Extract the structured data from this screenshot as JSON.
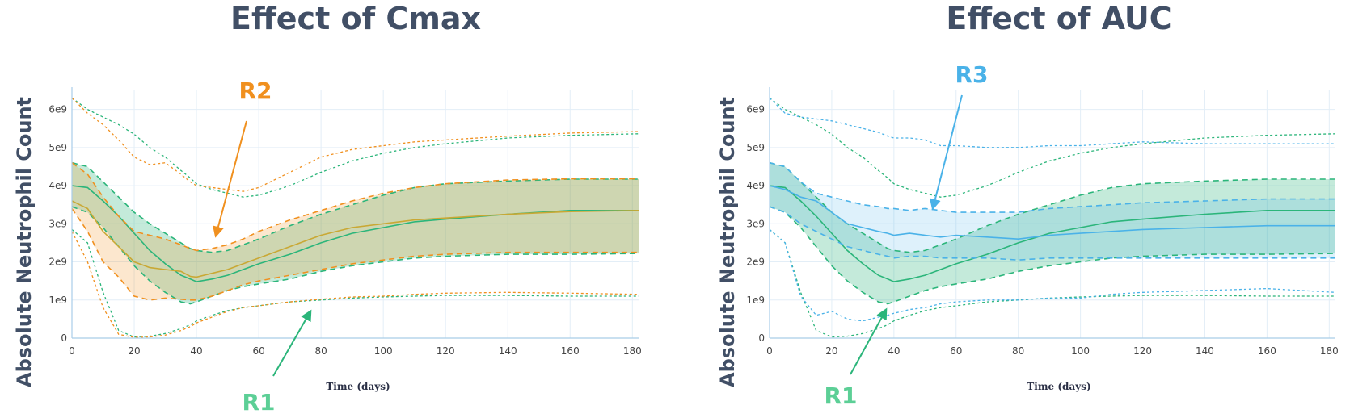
{
  "colors": {
    "green": "#2bb57a",
    "orange": "#f0901f",
    "blue": "#4ab2e8",
    "olive": "#c9a834",
    "title": "#414f66",
    "grid": "#e3eef7",
    "axis": "#a9cde8"
  },
  "chart_data": [
    {
      "type": "line",
      "title": "Effect of Cmax",
      "xlabel": "Time (days)",
      "ylabel": "Absolute Neutrophil Count",
      "xlim": [
        0,
        182
      ],
      "ylim": [
        0,
        6500000000.0
      ],
      "xticks": [
        "0",
        "20",
        "40",
        "60",
        "80",
        "100",
        "120",
        "140",
        "160",
        "180"
      ],
      "yticks": [
        "0",
        "1e9",
        "2e9",
        "3e9",
        "4e9",
        "5e9",
        "6e9"
      ],
      "grid": true,
      "legend": "none",
      "series": [
        {
          "color": "green",
          "x": [
            0,
            5,
            10,
            15,
            20,
            25,
            30,
            35,
            38,
            40,
            45,
            50,
            55,
            60,
            70,
            80,
            90,
            100,
            110,
            120,
            140,
            160,
            182
          ],
          "median": [
            4000000000.0,
            3950000000.0,
            3600000000.0,
            3200000000.0,
            2750000000.0,
            2300000000.0,
            1950000000.0,
            1650000000.0,
            1550000000.0,
            1480000000.0,
            1550000000.0,
            1650000000.0,
            1800000000.0,
            1950000000.0,
            2200000000.0,
            2500000000.0,
            2750000000.0,
            2900000000.0,
            3050000000.0,
            3120000000.0,
            3250000000.0,
            3350000000.0,
            3350000000.0
          ],
          "upper": [
            4600000000.0,
            4500000000.0,
            4100000000.0,
            3700000000.0,
            3300000000.0,
            3000000000.0,
            2750000000.0,
            2500000000.0,
            2350000000.0,
            2300000000.0,
            2250000000.0,
            2300000000.0,
            2450000000.0,
            2600000000.0,
            2950000000.0,
            3250000000.0,
            3500000000.0,
            3750000000.0,
            3950000000.0,
            4050000000.0,
            4120000000.0,
            4170000000.0,
            4170000000.0
          ],
          "lower": [
            3450000000.0,
            3300000000.0,
            2900000000.0,
            2400000000.0,
            1900000000.0,
            1500000000.0,
            1200000000.0,
            950000000.0,
            900000000.0,
            950000000.0,
            1100000000.0,
            1250000000.0,
            1350000000.0,
            1420000000.0,
            1550000000.0,
            1750000000.0,
            1900000000.0,
            2000000000.0,
            2100000000.0,
            2150000000.0,
            2200000000.0,
            2200000000.0,
            2220000000.0
          ],
          "outer_upper": [
            6300000000.0,
            6000000000.0,
            5800000000.0,
            5600000000.0,
            5350000000.0,
            5000000000.0,
            4750000000.0,
            4400000000.0,
            4200000000.0,
            4050000000.0,
            3900000000.0,
            3800000000.0,
            3700000000.0,
            3750000000.0,
            4000000000.0,
            4350000000.0,
            4650000000.0,
            4850000000.0,
            5000000000.0,
            5100000000.0,
            5250000000.0,
            5320000000.0,
            5360000000.0
          ],
          "outer_lower": [
            2850000000.0,
            2500000000.0,
            1200000000.0,
            200000000.0,
            30000000.0,
            50000000.0,
            120000000.0,
            250000000.0,
            350000000.0,
            450000000.0,
            600000000.0,
            720000000.0,
            800000000.0,
            850000000.0,
            950000000.0,
            1000000000.0,
            1050000000.0,
            1080000000.0,
            1100000000.0,
            1120000000.0,
            1120000000.0,
            1100000000.0,
            1100000000.0
          ]
        },
        {
          "color": "orange",
          "x": [
            0,
            5,
            10,
            15,
            20,
            25,
            30,
            35,
            38,
            40,
            45,
            50,
            55,
            60,
            70,
            80,
            90,
            100,
            110,
            120,
            140,
            160,
            182
          ],
          "median": [
            3600000000.0,
            3400000000.0,
            2800000000.0,
            2400000000.0,
            2000000000.0,
            1850000000.0,
            1800000000.0,
            1750000000.0,
            1620000000.0,
            1600000000.0,
            1700000000.0,
            1800000000.0,
            1950000000.0,
            2100000000.0,
            2400000000.0,
            2700000000.0,
            2900000000.0,
            3000000000.0,
            3100000000.0,
            3150000000.0,
            3250000000.0,
            3320000000.0,
            3350000000.0
          ],
          "upper": [
            4600000000.0,
            4300000000.0,
            3700000000.0,
            3200000000.0,
            2800000000.0,
            2700000000.0,
            2600000000.0,
            2450000000.0,
            2350000000.0,
            2300000000.0,
            2350000000.0,
            2450000000.0,
            2600000000.0,
            2800000000.0,
            3100000000.0,
            3350000000.0,
            3600000000.0,
            3800000000.0,
            3950000000.0,
            4050000000.0,
            4150000000.0,
            4180000000.0,
            4180000000.0
          ],
          "lower": [
            3400000000.0,
            2800000000.0,
            2000000000.0,
            1600000000.0,
            1100000000.0,
            1000000000.0,
            1050000000.0,
            1020000000.0,
            1000000000.0,
            1000000000.0,
            1100000000.0,
            1250000000.0,
            1400000000.0,
            1500000000.0,
            1650000000.0,
            1800000000.0,
            1950000000.0,
            2050000000.0,
            2150000000.0,
            2200000000.0,
            2250000000.0,
            2250000000.0,
            2250000000.0
          ],
          "outer_upper": [
            6300000000.0,
            5900000000.0,
            5600000000.0,
            5200000000.0,
            4750000000.0,
            4550000000.0,
            4600000000.0,
            4300000000.0,
            4100000000.0,
            4000000000.0,
            3950000000.0,
            3900000000.0,
            3850000000.0,
            3950000000.0,
            4350000000.0,
            4750000000.0,
            4950000000.0,
            5050000000.0,
            5150000000.0,
            5200000000.0,
            5300000000.0,
            5380000000.0,
            5420000000.0
          ],
          "outer_lower": [
            2800000000.0,
            2000000000.0,
            800000000.0,
            100000000.0,
            20000000.0,
            30000000.0,
            80000000.0,
            200000000.0,
            300000000.0,
            400000000.0,
            550000000.0,
            700000000.0,
            800000000.0,
            850000000.0,
            950000000.0,
            1020000000.0,
            1080000000.0,
            1100000000.0,
            1150000000.0,
            1180000000.0,
            1200000000.0,
            1180000000.0,
            1150000000.0
          ]
        }
      ],
      "annotations": [
        {
          "text": "R2",
          "color": "orange"
        },
        {
          "text": "R1",
          "color": "green"
        }
      ]
    },
    {
      "type": "line",
      "title": "Effect of AUC",
      "xlabel": "Time (days)",
      "ylabel": "Absolute Neutrophil Count",
      "xlim": [
        0,
        182
      ],
      "ylim": [
        0,
        6500000000.0
      ],
      "xticks": [
        "0",
        "20",
        "40",
        "60",
        "80",
        "100",
        "120",
        "140",
        "160",
        "180"
      ],
      "yticks": [
        "0",
        "1e9",
        "2e9",
        "3e9",
        "4e9",
        "5e9",
        "6e9"
      ],
      "grid": true,
      "legend": "none",
      "series": [
        {
          "color": "green",
          "x": [
            0,
            5,
            10,
            15,
            20,
            25,
            30,
            35,
            38,
            40,
            45,
            50,
            55,
            60,
            70,
            80,
            90,
            100,
            110,
            120,
            140,
            160,
            182
          ],
          "median": [
            4000000000.0,
            3950000000.0,
            3600000000.0,
            3200000000.0,
            2750000000.0,
            2300000000.0,
            1950000000.0,
            1650000000.0,
            1550000000.0,
            1480000000.0,
            1550000000.0,
            1650000000.0,
            1800000000.0,
            1950000000.0,
            2200000000.0,
            2500000000.0,
            2750000000.0,
            2900000000.0,
            3050000000.0,
            3120000000.0,
            3250000000.0,
            3350000000.0,
            3350000000.0
          ],
          "upper": [
            4600000000.0,
            4500000000.0,
            4100000000.0,
            3700000000.0,
            3300000000.0,
            3000000000.0,
            2750000000.0,
            2500000000.0,
            2350000000.0,
            2300000000.0,
            2250000000.0,
            2300000000.0,
            2450000000.0,
            2600000000.0,
            2950000000.0,
            3250000000.0,
            3500000000.0,
            3750000000.0,
            3950000000.0,
            4050000000.0,
            4120000000.0,
            4170000000.0,
            4170000000.0
          ],
          "lower": [
            3450000000.0,
            3300000000.0,
            2900000000.0,
            2400000000.0,
            1900000000.0,
            1500000000.0,
            1200000000.0,
            950000000.0,
            900000000.0,
            950000000.0,
            1100000000.0,
            1250000000.0,
            1350000000.0,
            1420000000.0,
            1550000000.0,
            1750000000.0,
            1900000000.0,
            2000000000.0,
            2100000000.0,
            2150000000.0,
            2200000000.0,
            2200000000.0,
            2220000000.0
          ],
          "outer_upper": [
            6300000000.0,
            6000000000.0,
            5800000000.0,
            5600000000.0,
            5350000000.0,
            5000000000.0,
            4750000000.0,
            4400000000.0,
            4200000000.0,
            4050000000.0,
            3900000000.0,
            3800000000.0,
            3700000000.0,
            3750000000.0,
            4000000000.0,
            4350000000.0,
            4650000000.0,
            4850000000.0,
            5000000000.0,
            5100000000.0,
            5250000000.0,
            5320000000.0,
            5360000000.0
          ],
          "outer_lower": [
            2850000000.0,
            2500000000.0,
            1200000000.0,
            200000000.0,
            30000000.0,
            50000000.0,
            120000000.0,
            250000000.0,
            350000000.0,
            450000000.0,
            600000000.0,
            720000000.0,
            800000000.0,
            850000000.0,
            950000000.0,
            1000000000.0,
            1050000000.0,
            1080000000.0,
            1100000000.0,
            1120000000.0,
            1120000000.0,
            1100000000.0,
            1100000000.0
          ]
        },
        {
          "color": "blue",
          "x": [
            0,
            5,
            10,
            15,
            20,
            25,
            30,
            35,
            38,
            40,
            45,
            50,
            55,
            60,
            70,
            80,
            90,
            100,
            110,
            120,
            140,
            160,
            182
          ],
          "median": [
            4000000000.0,
            3900000000.0,
            3700000000.0,
            3600000000.0,
            3300000000.0,
            3000000000.0,
            2900000000.0,
            2800000000.0,
            2750000000.0,
            2700000000.0,
            2750000000.0,
            2700000000.0,
            2650000000.0,
            2700000000.0,
            2650000000.0,
            2600000000.0,
            2700000000.0,
            2750000000.0,
            2800000000.0,
            2850000000.0,
            2900000000.0,
            2950000000.0,
            2950000000.0
          ],
          "upper": [
            4600000000.0,
            4500000000.0,
            4100000000.0,
            3800000000.0,
            3700000000.0,
            3600000000.0,
            3500000000.0,
            3450000000.0,
            3400000000.0,
            3400000000.0,
            3350000000.0,
            3400000000.0,
            3350000000.0,
            3300000000.0,
            3300000000.0,
            3300000000.0,
            3400000000.0,
            3450000000.0,
            3500000000.0,
            3550000000.0,
            3600000000.0,
            3650000000.0,
            3650000000.0
          ],
          "lower": [
            3450000000.0,
            3300000000.0,
            3000000000.0,
            2800000000.0,
            2600000000.0,
            2400000000.0,
            2300000000.0,
            2200000000.0,
            2150000000.0,
            2100000000.0,
            2150000000.0,
            2150000000.0,
            2100000000.0,
            2100000000.0,
            2100000000.0,
            2050000000.0,
            2100000000.0,
            2100000000.0,
            2100000000.0,
            2100000000.0,
            2100000000.0,
            2100000000.0,
            2100000000.0
          ],
          "outer_upper": [
            6300000000.0,
            5900000000.0,
            5800000000.0,
            5750000000.0,
            5700000000.0,
            5600000000.0,
            5500000000.0,
            5400000000.0,
            5300000000.0,
            5250000000.0,
            5250000000.0,
            5200000000.0,
            5050000000.0,
            5050000000.0,
            5000000000.0,
            5000000000.0,
            5050000000.0,
            5050000000.0,
            5100000000.0,
            5150000000.0,
            5100000000.0,
            5100000000.0,
            5100000000.0
          ],
          "outer_lower": [
            2850000000.0,
            2500000000.0,
            1100000000.0,
            600000000.0,
            700000000.0,
            500000000.0,
            450000000.0,
            550000000.0,
            600000000.0,
            650000000.0,
            750000000.0,
            800000000.0,
            900000000.0,
            950000000.0,
            1000000000.0,
            1000000000.0,
            1050000000.0,
            1050000000.0,
            1150000000.0,
            1200000000.0,
            1250000000.0,
            1300000000.0,
            1200000000.0
          ]
        }
      ],
      "annotations": [
        {
          "text": "R3",
          "color": "blue"
        },
        {
          "text": "R1",
          "color": "green"
        }
      ]
    }
  ]
}
